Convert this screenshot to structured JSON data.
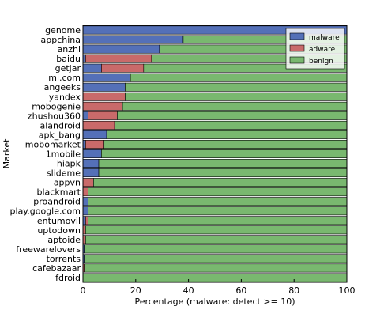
{
  "chart_data": {
    "type": "bar",
    "orientation": "horizontal",
    "stacked": true,
    "xlabel": "Percentage (malware: detect >= 10)",
    "ylabel": "Market",
    "xlim": [
      0,
      100
    ],
    "xticks": [
      0,
      20,
      40,
      60,
      80,
      100
    ],
    "legend_position": "top-right",
    "categories": [
      "genome",
      "appchina",
      "anzhi",
      "baidu",
      "getjar",
      "mi.com",
      "angeeks",
      "yandex",
      "mobogenie",
      "zhushou360",
      "alandroid",
      "apk_bang",
      "mobomarket",
      "1mobile",
      "hiapk",
      "slideme",
      "appvn",
      "blackmart",
      "proandroid",
      "play.google.com",
      "entumovil",
      "uptodown",
      "aptoide",
      "freewarelovers",
      "torrents",
      "cafebazaar",
      "fdroid"
    ],
    "series": [
      {
        "name": "malware",
        "color": "#5470b8",
        "values": [
          100,
          38,
          29,
          1,
          7,
          18,
          16,
          0,
          0,
          2,
          0,
          9,
          1,
          7,
          6,
          6,
          0,
          0,
          2,
          2,
          1,
          0,
          0,
          0.5,
          0.5,
          0,
          0
        ]
      },
      {
        "name": "adware",
        "color": "#c96a6a",
        "values": [
          0,
          0,
          0,
          25,
          16,
          0,
          0,
          16,
          15,
          11,
          12,
          0,
          7,
          0,
          0,
          0,
          4,
          2,
          0,
          0,
          1,
          1,
          1,
          0,
          0,
          0.5,
          0
        ]
      },
      {
        "name": "benign",
        "color": "#79b86f",
        "values": [
          0,
          62,
          71,
          74,
          77,
          82,
          84,
          84,
          85,
          87,
          88,
          91,
          92,
          93,
          94,
          94,
          96,
          98,
          98,
          98,
          98,
          99,
          99,
          99.5,
          99.5,
          99.5,
          100
        ]
      }
    ]
  }
}
